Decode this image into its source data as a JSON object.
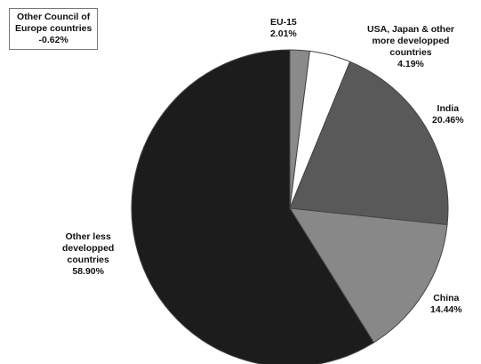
{
  "chart_data": {
    "type": "pie",
    "title": "",
    "slices": [
      {
        "label": "EU-15",
        "name_lines": [
          "EU-15"
        ],
        "value": 2.01,
        "value_text": "2.01%",
        "color": "#8a8a8a"
      },
      {
        "label": "USA, Japan & other more developped countries",
        "name_lines": [
          "USA, Japan & other",
          "more developped",
          "countries"
        ],
        "value": 4.19,
        "value_text": "4.19%",
        "color": "#ffffff"
      },
      {
        "label": "India",
        "name_lines": [
          "India"
        ],
        "value": 20.46,
        "value_text": "20.46%",
        "color": "#595959"
      },
      {
        "label": "China",
        "name_lines": [
          "China"
        ],
        "value": 14.44,
        "value_text": "14.44%",
        "color": "#888888"
      },
      {
        "label": "Other less developped countries",
        "name_lines": [
          "Other less",
          "developped",
          "countries"
        ],
        "value": 58.9,
        "value_text": "58.90%",
        "color": "#1c1c1c"
      }
    ],
    "annotation": {
      "label": "Other Council of Europe countries",
      "name_lines": [
        "Other Council of",
        "Europe countries"
      ],
      "value": -0.62,
      "value_text": "-0.62%"
    },
    "legend": "none",
    "start": "top, clockwise"
  }
}
